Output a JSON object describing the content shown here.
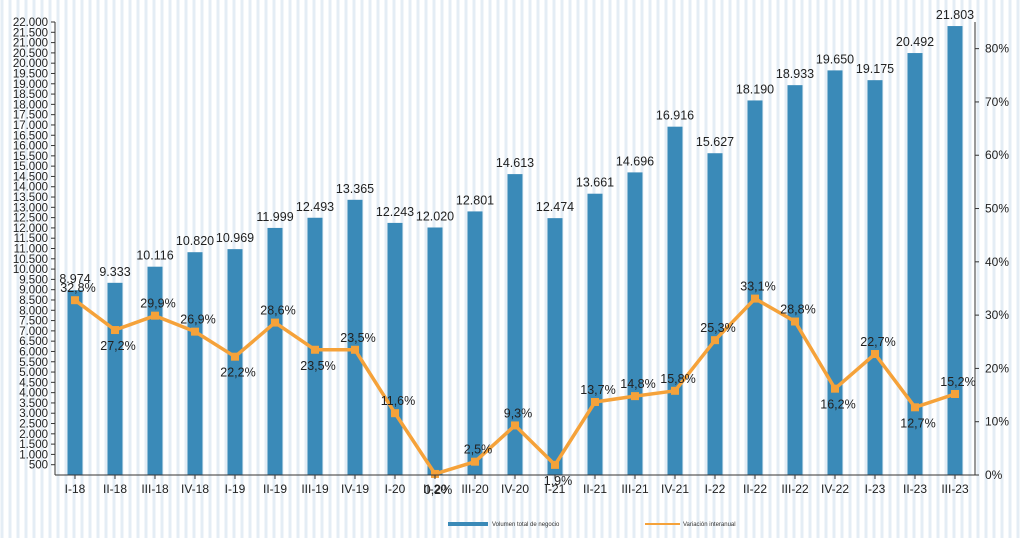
{
  "chart_data": {
    "type": "bar",
    "categories": [
      "I-18",
      "II-18",
      "III-18",
      "IV-18",
      "I-19",
      "II-19",
      "III-19",
      "IV-19",
      "I-20",
      "II-20",
      "III-20",
      "IV-20",
      "I-21",
      "II-21",
      "III-21",
      "IV-21",
      "I-22",
      "II-22",
      "III-22",
      "IV-22",
      "I-23",
      "II-23",
      "III-23"
    ],
    "series": [
      {
        "name": "Volumen total de negocio",
        "type": "bar",
        "axis": "left",
        "color": "#3a8ab8",
        "values": [
          8974,
          9333,
          10116,
          10820,
          10969,
          11999,
          12493,
          13365,
          12243,
          12020,
          12801,
          14613,
          12474,
          13661,
          14696,
          16916,
          15627,
          18190,
          18933,
          19650,
          19175,
          20492,
          21803
        ],
        "labels": [
          "8.974",
          "9.333",
          "10.116",
          "10.820",
          "10.969",
          "11.999",
          "12.493",
          "13.365",
          "12.243",
          "12.020",
          "12.801",
          "14.613",
          "12.474",
          "13.661",
          "14.696",
          "16.916",
          "15.627",
          "18.190",
          "18.933",
          "19.650",
          "19.175",
          "20.492",
          "21.803"
        ]
      },
      {
        "name": "Variación interanual",
        "type": "line",
        "axis": "right",
        "color": "#f5a23a",
        "values": [
          32.8,
          27.2,
          29.9,
          26.9,
          22.2,
          28.6,
          23.5,
          23.5,
          11.6,
          0.2,
          2.5,
          9.3,
          1.9,
          13.7,
          14.8,
          15.8,
          25.3,
          33.1,
          28.8,
          16.2,
          22.7,
          12.7,
          15.2
        ],
        "labels": [
          "32,8%",
          "27,2%",
          "29,9%",
          "26,9%",
          "22,2%",
          "28,6%",
          "23,5%",
          "23,5%",
          "11,6%",
          "0,2%",
          "2,5%",
          "9,3%",
          "1,9%",
          "13,7%",
          "14,8%",
          "15,8%",
          "25,3%",
          "33,1%",
          "28,8%",
          "16,2%",
          "22,7%",
          "12,7%",
          "15,2%"
        ]
      }
    ],
    "left_axis": {
      "ylim": [
        0,
        22000
      ],
      "ticks": [
        "500",
        "1.000",
        "1.500",
        "2.000",
        "2.500",
        "3.000",
        "3.500",
        "4.000",
        "4.500",
        "5.000",
        "5.500",
        "6.000",
        "6.500",
        "7.000",
        "7.500",
        "8.000",
        "8.500",
        "9.000",
        "9.500",
        "10.000",
        "10.500",
        "11.000",
        "11.500",
        "12.000",
        "12.500",
        "13.000",
        "13.500",
        "14.000",
        "14.500",
        "15.000",
        "15.500",
        "16.000",
        "16.500",
        "17.000",
        "17.500",
        "18.000",
        "18.500",
        "19.000",
        "19.500",
        "20.000",
        "20.500",
        "21.000",
        "21.500",
        "22.000"
      ]
    },
    "right_axis": {
      "ylim": [
        0,
        85
      ],
      "ticks": [
        "0%",
        "10%",
        "20%",
        "30%",
        "40%",
        "50%",
        "60%",
        "70%",
        "80%"
      ]
    },
    "grid": false,
    "legend_position": "bottom"
  }
}
